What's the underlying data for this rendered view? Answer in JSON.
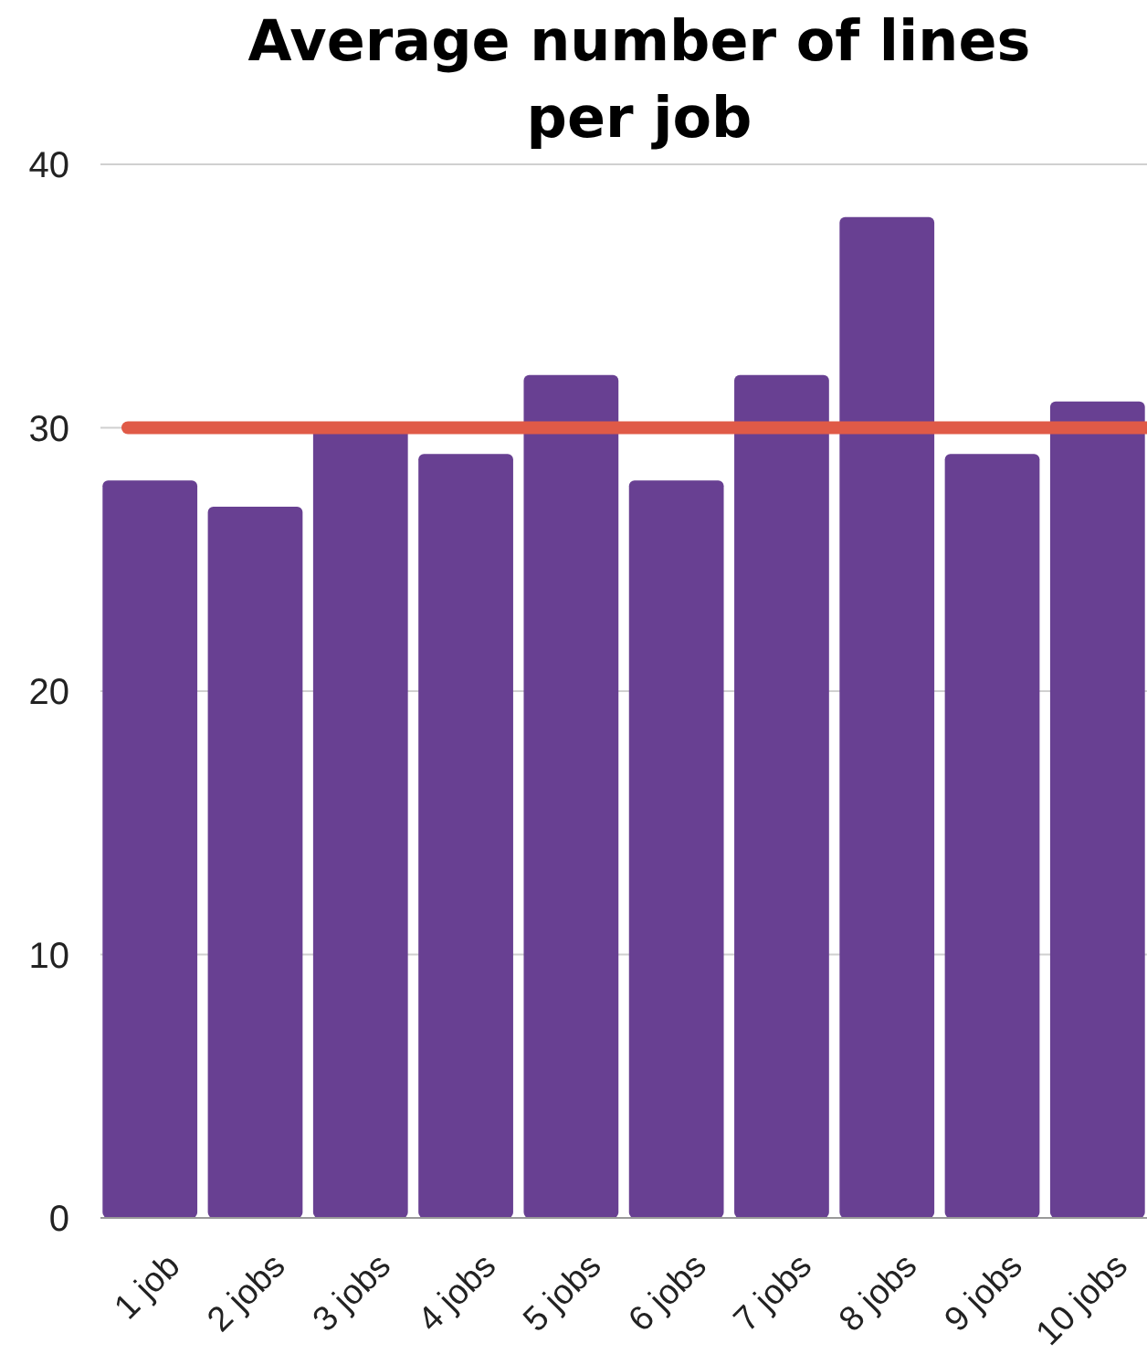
{
  "chart_data": {
    "type": "bar",
    "title": "Average number of lines per job",
    "categories": [
      "1 job",
      "2 jobs",
      "3 jobs",
      "4 jobs",
      "5 jobs",
      "6 jobs",
      "7 jobs",
      "8 jobs",
      "9 jobs",
      "10 jobs"
    ],
    "values": [
      28,
      27,
      30,
      29,
      32,
      28,
      32,
      38,
      29,
      31
    ],
    "color": "#684092",
    "ylim": [
      0,
      40
    ],
    "yticks": [
      0,
      10,
      20,
      30,
      40
    ],
    "grid": "y",
    "ref_lines": [
      {
        "axis": "y",
        "value": 30,
        "color": "#e05a47"
      }
    ]
  }
}
